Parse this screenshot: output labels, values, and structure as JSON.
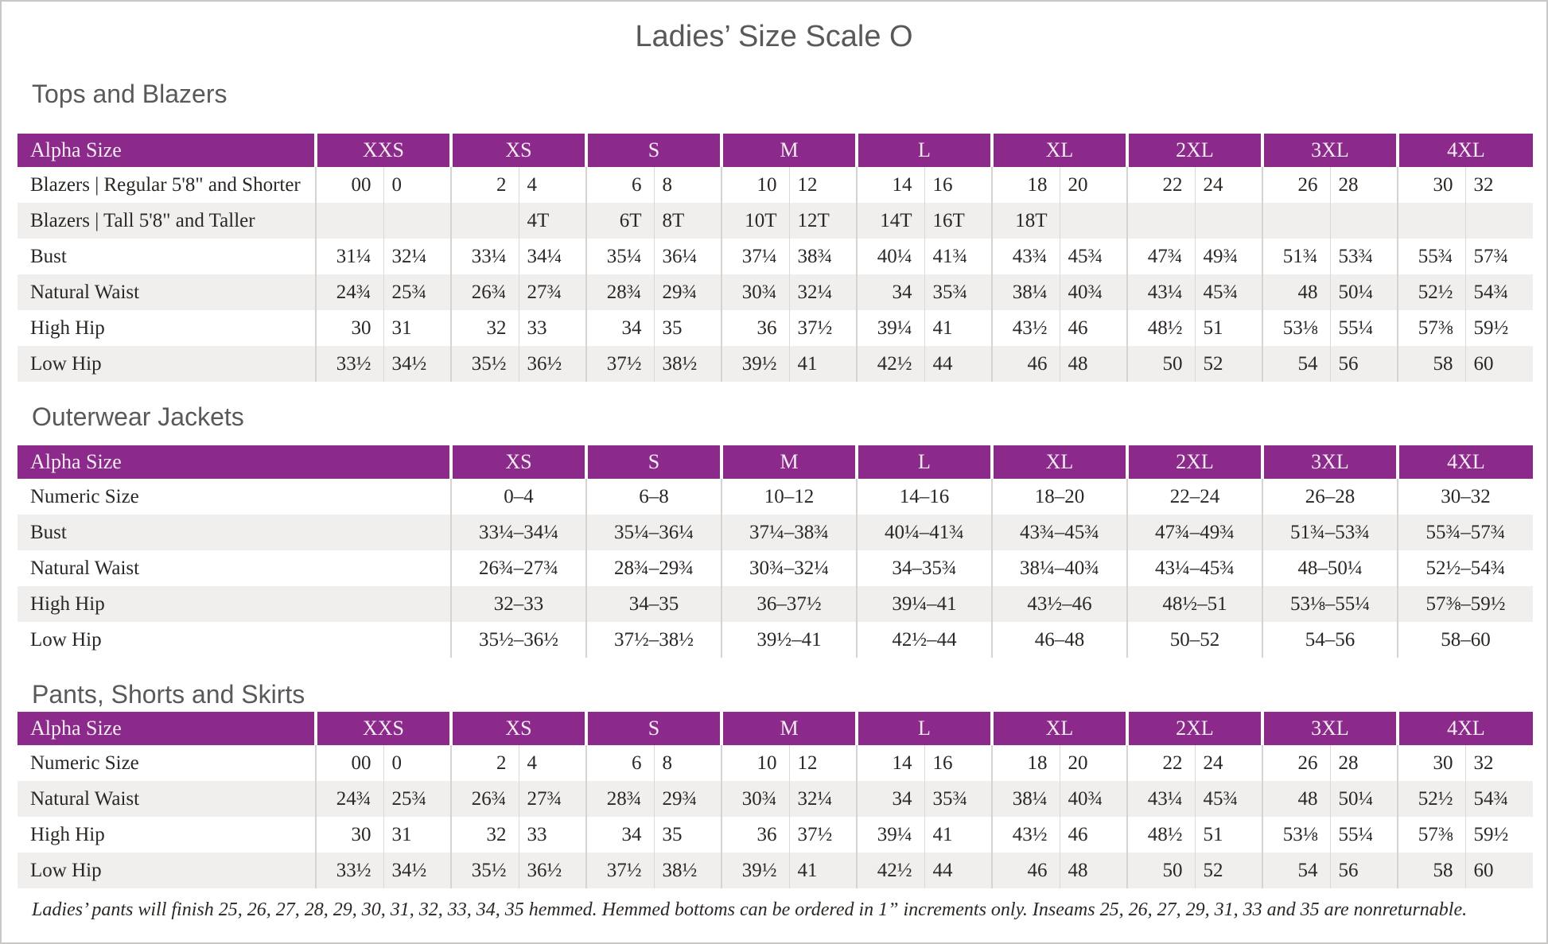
{
  "page": {
    "title": "Ladies’ Size Scale O",
    "footnote": "Ladies’ pants will finish 25, 26, 27, 28, 29, 30, 31, 32, 33, 34, 35 hemmed. Hemmed bottoms can be ordered in 1” increments only. Inseams 25, 26, 27, 29, 31, 33 and 35 are nonreturnable."
  },
  "colors": {
    "accent_purple": "#8b2a8b",
    "stripe_gray": "#f1efed",
    "heading_gray": "#58595b"
  },
  "tables": [
    {
      "section_title": "Tops and Blazers",
      "columns_per_size": 2,
      "header": [
        "Alpha Size",
        "XXS",
        "XS",
        "S",
        "M",
        "L",
        "XL",
        "2XL",
        "3XL",
        "4XL"
      ],
      "rows": [
        {
          "label": "Blazers | Regular 5'8\" and Shorter",
          "values": [
            "00",
            "0",
            "2",
            "4",
            "6",
            "8",
            "10",
            "12",
            "14",
            "16",
            "18",
            "20",
            "22",
            "24",
            "26",
            "28",
            "30",
            "32"
          ]
        },
        {
          "label": "Blazers | Tall 5'8\" and Taller",
          "values": [
            "",
            "",
            "",
            "4T",
            "6T",
            "8T",
            "10T",
            "12T",
            "14T",
            "16T",
            "18T",
            "",
            "",
            "",
            "",
            "",
            "",
            ""
          ]
        },
        {
          "label": "Bust",
          "values": [
            "31¼",
            "32¼",
            "33¼",
            "34¼",
            "35¼",
            "36¼",
            "37¼",
            "38¾",
            "40¼",
            "41¾",
            "43¾",
            "45¾",
            "47¾",
            "49¾",
            "51¾",
            "53¾",
            "55¾",
            "57¾"
          ]
        },
        {
          "label": "Natural Waist",
          "values": [
            "24¾",
            "25¾",
            "26¾",
            "27¾",
            "28¾",
            "29¾",
            "30¾",
            "32¼",
            "34",
            "35¾",
            "38¼",
            "40¾",
            "43¼",
            "45¾",
            "48",
            "50¼",
            "52½",
            "54¾"
          ]
        },
        {
          "label": "High Hip",
          "values": [
            "30",
            "31",
            "32",
            "33",
            "34",
            "35",
            "36",
            "37½",
            "39¼",
            "41",
            "43½",
            "46",
            "48½",
            "51",
            "53⅛",
            "55¼",
            "57⅜",
            "59½"
          ]
        },
        {
          "label": "Low Hip",
          "values": [
            "33½",
            "34½",
            "35½",
            "36½",
            "37½",
            "38½",
            "39½",
            "41",
            "42½",
            "44",
            "46",
            "48",
            "50",
            "52",
            "54",
            "56",
            "58",
            "60"
          ]
        }
      ]
    },
    {
      "section_title": "Outerwear Jackets",
      "columns_per_size": 1,
      "header": [
        "Alpha Size",
        "XS",
        "S",
        "M",
        "L",
        "XL",
        "2XL",
        "3XL",
        "4XL"
      ],
      "rows": [
        {
          "label": "Numeric Size",
          "values": [
            "0–4",
            "6–8",
            "10–12",
            "14–16",
            "18–20",
            "22–24",
            "26–28",
            "30–32"
          ]
        },
        {
          "label": "Bust",
          "values": [
            "33¼–34¼",
            "35¼–36¼",
            "37¼–38¾",
            "40¼–41¾",
            "43¾–45¾",
            "47¾–49¾",
            "51¾–53¾",
            "55¾–57¾"
          ]
        },
        {
          "label": "Natural Waist",
          "values": [
            "26¾–27¾",
            "28¾–29¾",
            "30¾–32¼",
            "34–35¾",
            "38¼–40¾",
            "43¼–45¾",
            "48–50¼",
            "52½–54¾"
          ]
        },
        {
          "label": "High Hip",
          "values": [
            "32–33",
            "34–35",
            "36–37½",
            "39¼–41",
            "43½–46",
            "48½–51",
            "53⅛–55¼",
            "57⅜–59½"
          ]
        },
        {
          "label": "Low Hip",
          "values": [
            "35½–36½",
            "37½–38½",
            "39½–41",
            "42½–44",
            "46–48",
            "50–52",
            "54–56",
            "58–60"
          ]
        }
      ]
    },
    {
      "section_title": "Pants, Shorts and Skirts",
      "columns_per_size": 2,
      "header": [
        "Alpha Size",
        "XXS",
        "XS",
        "S",
        "M",
        "L",
        "XL",
        "2XL",
        "3XL",
        "4XL"
      ],
      "rows": [
        {
          "label": "Numeric Size",
          "values": [
            "00",
            "0",
            "2",
            "4",
            "6",
            "8",
            "10",
            "12",
            "14",
            "16",
            "18",
            "20",
            "22",
            "24",
            "26",
            "28",
            "30",
            "32"
          ]
        },
        {
          "label": "Natural Waist",
          "values": [
            "24¾",
            "25¾",
            "26¾",
            "27¾",
            "28¾",
            "29¾",
            "30¾",
            "32¼",
            "34",
            "35¾",
            "38¼",
            "40¾",
            "43¼",
            "45¾",
            "48",
            "50¼",
            "52½",
            "54¾"
          ]
        },
        {
          "label": "High Hip",
          "values": [
            "30",
            "31",
            "32",
            "33",
            "34",
            "35",
            "36",
            "37½",
            "39¼",
            "41",
            "43½",
            "46",
            "48½",
            "51",
            "53⅛",
            "55¼",
            "57⅜",
            "59½"
          ]
        },
        {
          "label": "Low Hip",
          "values": [
            "33½",
            "34½",
            "35½",
            "36½",
            "37½",
            "38½",
            "39½",
            "41",
            "42½",
            "44",
            "46",
            "48",
            "50",
            "52",
            "54",
            "56",
            "58",
            "60"
          ]
        }
      ]
    }
  ]
}
